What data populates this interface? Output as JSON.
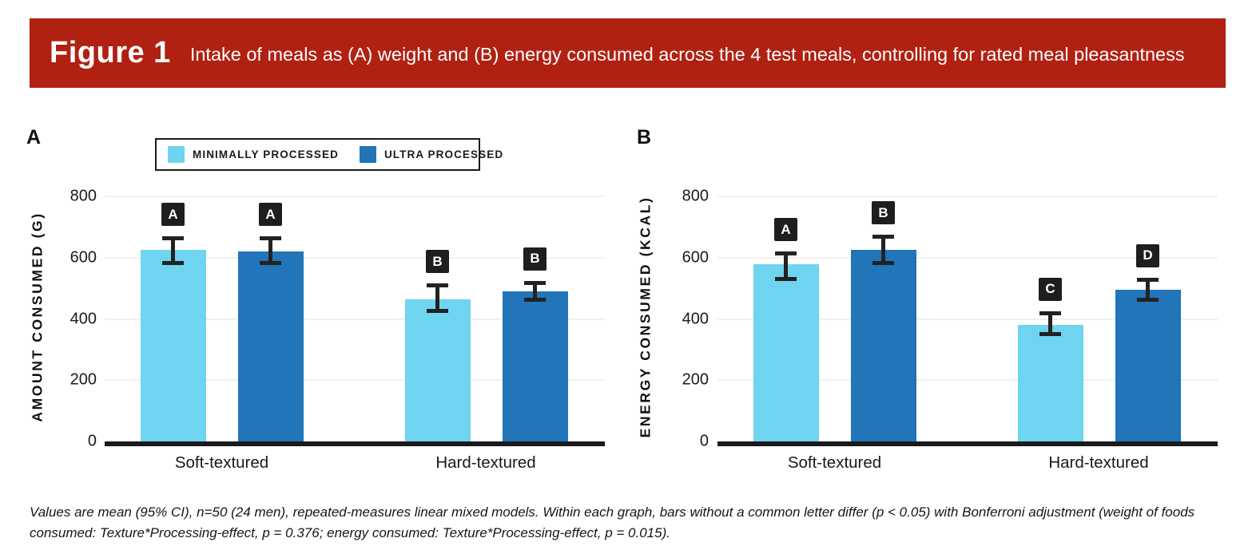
{
  "header": {
    "figure_label": "Figure 1",
    "subtitle": "Intake of meals as (A) weight and (B) energy consumed across the 4 test meals, controlling for rated meal pleasantness",
    "bg_color": "#B02112",
    "text_color": "#FFFFFF"
  },
  "legend": {
    "items": [
      {
        "label": "MINIMALLY PROCESSED",
        "color": "#6FD4EF"
      },
      {
        "label": "ULTRA PROCESSED",
        "color": "#2175B8"
      }
    ]
  },
  "chart_data": [
    {
      "type": "bar",
      "panel": "A",
      "ylabel": "AMOUNT CONSUMED (G)",
      "categories": [
        "Soft-textured",
        "Hard-textured"
      ],
      "yticks": [
        0,
        200,
        400,
        600,
        800
      ],
      "ylim": [
        0,
        816
      ],
      "grid": true,
      "legend_position": "top-left",
      "series": [
        {
          "name": "MINIMALLY PROCESSED",
          "color": "#6FD4EF",
          "values": [
            625,
            465
          ],
          "ci_low": [
            575,
            420
          ],
          "ci_high": [
            670,
            515
          ],
          "letters": [
            "A",
            "B"
          ]
        },
        {
          "name": "ULTRA PROCESSED",
          "color": "#2175B8",
          "values": [
            620,
            490
          ],
          "ci_low": [
            575,
            455
          ],
          "ci_high": [
            670,
            525
          ],
          "letters": [
            "A",
            "B"
          ]
        }
      ]
    },
    {
      "type": "bar",
      "panel": "B",
      "ylabel": "ENERGY CONSUMED (KCAL)",
      "categories": [
        "Soft-textured",
        "Hard-textured"
      ],
      "yticks": [
        0,
        200,
        400,
        600,
        800
      ],
      "ylim": [
        0,
        816
      ],
      "grid": true,
      "series": [
        {
          "name": "MINIMALLY PROCESSED",
          "color": "#6FD4EF",
          "values": [
            580,
            380
          ],
          "ci_low": [
            525,
            345
          ],
          "ci_high": [
            620,
            425
          ],
          "letters": [
            "A",
            "C"
          ]
        },
        {
          "name": "ULTRA PROCESSED",
          "color": "#2175B8",
          "values": [
            625,
            495
          ],
          "ci_low": [
            575,
            455
          ],
          "ci_high": [
            675,
            535
          ],
          "letters": [
            "B",
            "D"
          ]
        }
      ]
    }
  ],
  "footnote": "Values are mean (95% CI), n=50 (24 men), repeated-measures linear mixed models. Within each graph, bars without a common letter differ (p < 0.05) with Bonferroni adjustment (weight of foods consumed: Texture*Processing-effect, p = 0.376; energy consumed: Texture*Processing-effect, p = 0.015)."
}
